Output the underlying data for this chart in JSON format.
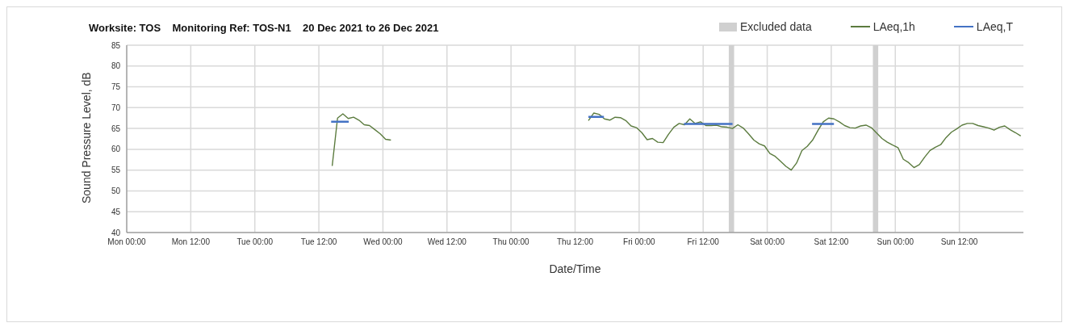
{
  "chart_data": {
    "type": "line",
    "title": "Worksite: TOS    Monitoring Ref: TOS-N1    20 Dec 2021 to 26 Dec 2021",
    "xlabel": "Date/Time",
    "ylabel": "Sound Pressure Level, dB",
    "xlim": [
      "2021-12-20T00:00",
      "2021-12-27T00:00"
    ],
    "xticks": [
      {
        "value": "2021-12-20T00:00",
        "label": "Mon 00:00"
      },
      {
        "value": "2021-12-20T12:00",
        "label": "Mon 12:00"
      },
      {
        "value": "2021-12-21T00:00",
        "label": "Tue 00:00"
      },
      {
        "value": "2021-12-21T12:00",
        "label": "Tue 12:00"
      },
      {
        "value": "2021-12-22T00:00",
        "label": "Wed 00:00"
      },
      {
        "value": "2021-12-22T12:00",
        "label": "Wed 12:00"
      },
      {
        "value": "2021-12-23T00:00",
        "label": "Thu 00:00"
      },
      {
        "value": "2021-12-23T12:00",
        "label": "Thu 12:00"
      },
      {
        "value": "2021-12-24T00:00",
        "label": "Fri 00:00"
      },
      {
        "value": "2021-12-24T12:00",
        "label": "Fri 12:00"
      },
      {
        "value": "2021-12-25T00:00",
        "label": "Sat 00:00"
      },
      {
        "value": "2021-12-25T12:00",
        "label": "Sat 12:00"
      },
      {
        "value": "2021-12-26T00:00",
        "label": "Sun 00:00"
      },
      {
        "value": "2021-12-26T12:00",
        "label": "Sun 12:00"
      }
    ],
    "ylim": [
      40,
      85
    ],
    "yticks": [
      40,
      45,
      50,
      55,
      60,
      65,
      70,
      75,
      80,
      85
    ],
    "grid": true,
    "legend": "top right",
    "marker": "none",
    "line_style": "solid",
    "bands": [
      {
        "axis": "x",
        "from": "2021-12-24T16:48",
        "to": "2021-12-24T17:48",
        "label": "Excluded data",
        "color": "#d0d0d0"
      },
      {
        "axis": "x",
        "from": "2021-12-25T19:48",
        "to": "2021-12-25T20:48",
        "color": "#d0d0d0"
      }
    ],
    "series": [
      {
        "name": "LAeq,1h",
        "color": "#5b7b3e",
        "x": [
          "2021-12-21T14:30",
          "2021-12-21T15:30",
          "2021-12-21T16:30",
          "2021-12-21T17:30",
          "2021-12-21T18:30",
          "2021-12-21T19:30",
          "2021-12-21T20:30",
          "2021-12-21T21:30",
          "2021-12-21T22:30",
          "2021-12-21T23:30",
          "2021-12-22T00:30",
          "2021-12-22T01:30",
          "2021-12-22T20:00",
          "2021-12-23T14:30",
          "2021-12-23T15:30",
          "2021-12-23T16:30",
          "2021-12-23T17:30",
          "2021-12-23T18:30",
          "2021-12-23T19:30",
          "2021-12-23T20:30",
          "2021-12-23T21:30",
          "2021-12-23T22:30",
          "2021-12-23T23:30",
          "2021-12-24T00:30",
          "2021-12-24T01:30",
          "2021-12-24T02:30",
          "2021-12-24T03:30",
          "2021-12-24T04:30",
          "2021-12-24T05:30",
          "2021-12-24T06:30",
          "2021-12-24T07:30",
          "2021-12-24T08:30",
          "2021-12-24T09:30",
          "2021-12-24T10:30",
          "2021-12-24T11:30",
          "2021-12-24T12:30",
          "2021-12-24T13:30",
          "2021-12-24T14:30",
          "2021-12-24T15:30",
          "2021-12-24T16:30",
          "2021-12-24T17:30",
          "2021-12-24T18:30",
          "2021-12-24T19:30",
          "2021-12-24T20:30",
          "2021-12-24T21:30",
          "2021-12-24T22:30",
          "2021-12-24T23:30",
          "2021-12-25T00:30",
          "2021-12-25T01:30",
          "2021-12-25T02:30",
          "2021-12-25T03:30",
          "2021-12-25T04:30",
          "2021-12-25T05:30",
          "2021-12-25T06:30",
          "2021-12-25T07:30",
          "2021-12-25T08:30",
          "2021-12-25T09:30",
          "2021-12-25T10:30",
          "2021-12-25T11:30",
          "2021-12-25T12:30",
          "2021-12-25T13:30",
          "2021-12-25T14:30",
          "2021-12-25T15:30",
          "2021-12-25T16:30",
          "2021-12-25T17:30",
          "2021-12-25T18:30",
          "2021-12-25T19:30",
          "2021-12-25T20:30",
          "2021-12-25T21:30",
          "2021-12-25T22:30",
          "2021-12-25T23:30",
          "2021-12-26T00:30",
          "2021-12-26T01:30",
          "2021-12-26T02:30",
          "2021-12-26T03:30",
          "2021-12-26T04:30",
          "2021-12-26T05:30",
          "2021-12-26T06:30",
          "2021-12-26T07:30",
          "2021-12-26T08:30",
          "2021-12-26T09:30",
          "2021-12-26T10:30",
          "2021-12-26T11:30",
          "2021-12-26T12:30",
          "2021-12-26T13:30",
          "2021-12-26T14:30",
          "2021-12-26T15:30",
          "2021-12-26T16:30",
          "2021-12-26T17:30",
          "2021-12-26T18:30",
          "2021-12-26T19:30",
          "2021-12-26T20:30",
          "2021-12-26T21:30",
          "2021-12-26T22:30",
          "2021-12-26T23:30"
        ],
        "values": [
          56,
          67.5,
          68.5,
          67.4,
          67.7,
          67,
          65.9,
          65.7,
          64.7,
          63.7,
          62.4,
          62.2,
          null,
          66.9,
          68.7,
          68.4,
          67.3,
          67.0,
          67.7,
          67.6,
          66.9,
          65.6,
          65.2,
          64.0,
          62.3,
          62.6,
          61.7,
          61.6,
          63.6,
          65.3,
          66.2,
          65.9,
          67.3,
          66.2,
          66.6,
          65.7,
          65.7,
          65.8,
          65.4,
          65.3,
          65.0,
          65.9,
          65.1,
          63.7,
          62.2,
          61.3,
          60.8,
          59.0,
          58.3,
          57.1,
          55.9,
          55.0,
          56.7,
          59.7,
          60.7,
          62.2,
          64.5,
          66.6,
          67.5,
          67.3,
          66.6,
          65.7,
          65.2,
          65.1,
          65.6,
          65.8,
          65.2,
          63.9,
          62.6,
          61.7,
          61.0,
          60.4,
          57.6,
          56.8,
          55.6,
          56.3,
          58.1,
          59.7,
          60.5,
          61.1,
          62.8,
          64.1,
          64.9,
          65.8,
          66.2,
          66.2,
          65.7,
          65.4,
          65.1,
          64.6,
          65.3,
          65.6,
          64.7,
          64.0,
          63.2
        ]
      },
      {
        "name": "LAeq,T",
        "color": "#4472c4",
        "x": [
          "2021-12-21T14:18",
          "2021-12-21T17:36",
          "2021-12-22T16:00",
          "2021-12-23T14:30",
          "2021-12-23T17:24",
          "2021-12-24T01:00",
          "2021-12-24T08:24",
          "2021-12-24T17:30",
          "2021-12-25T00:00",
          "2021-12-25T08:24",
          "2021-12-25T12:30"
        ],
        "values": [
          66.6,
          66.6,
          null,
          67.8,
          67.8,
          null,
          66.1,
          66.1,
          null,
          66.1,
          66.1
        ]
      }
    ]
  }
}
